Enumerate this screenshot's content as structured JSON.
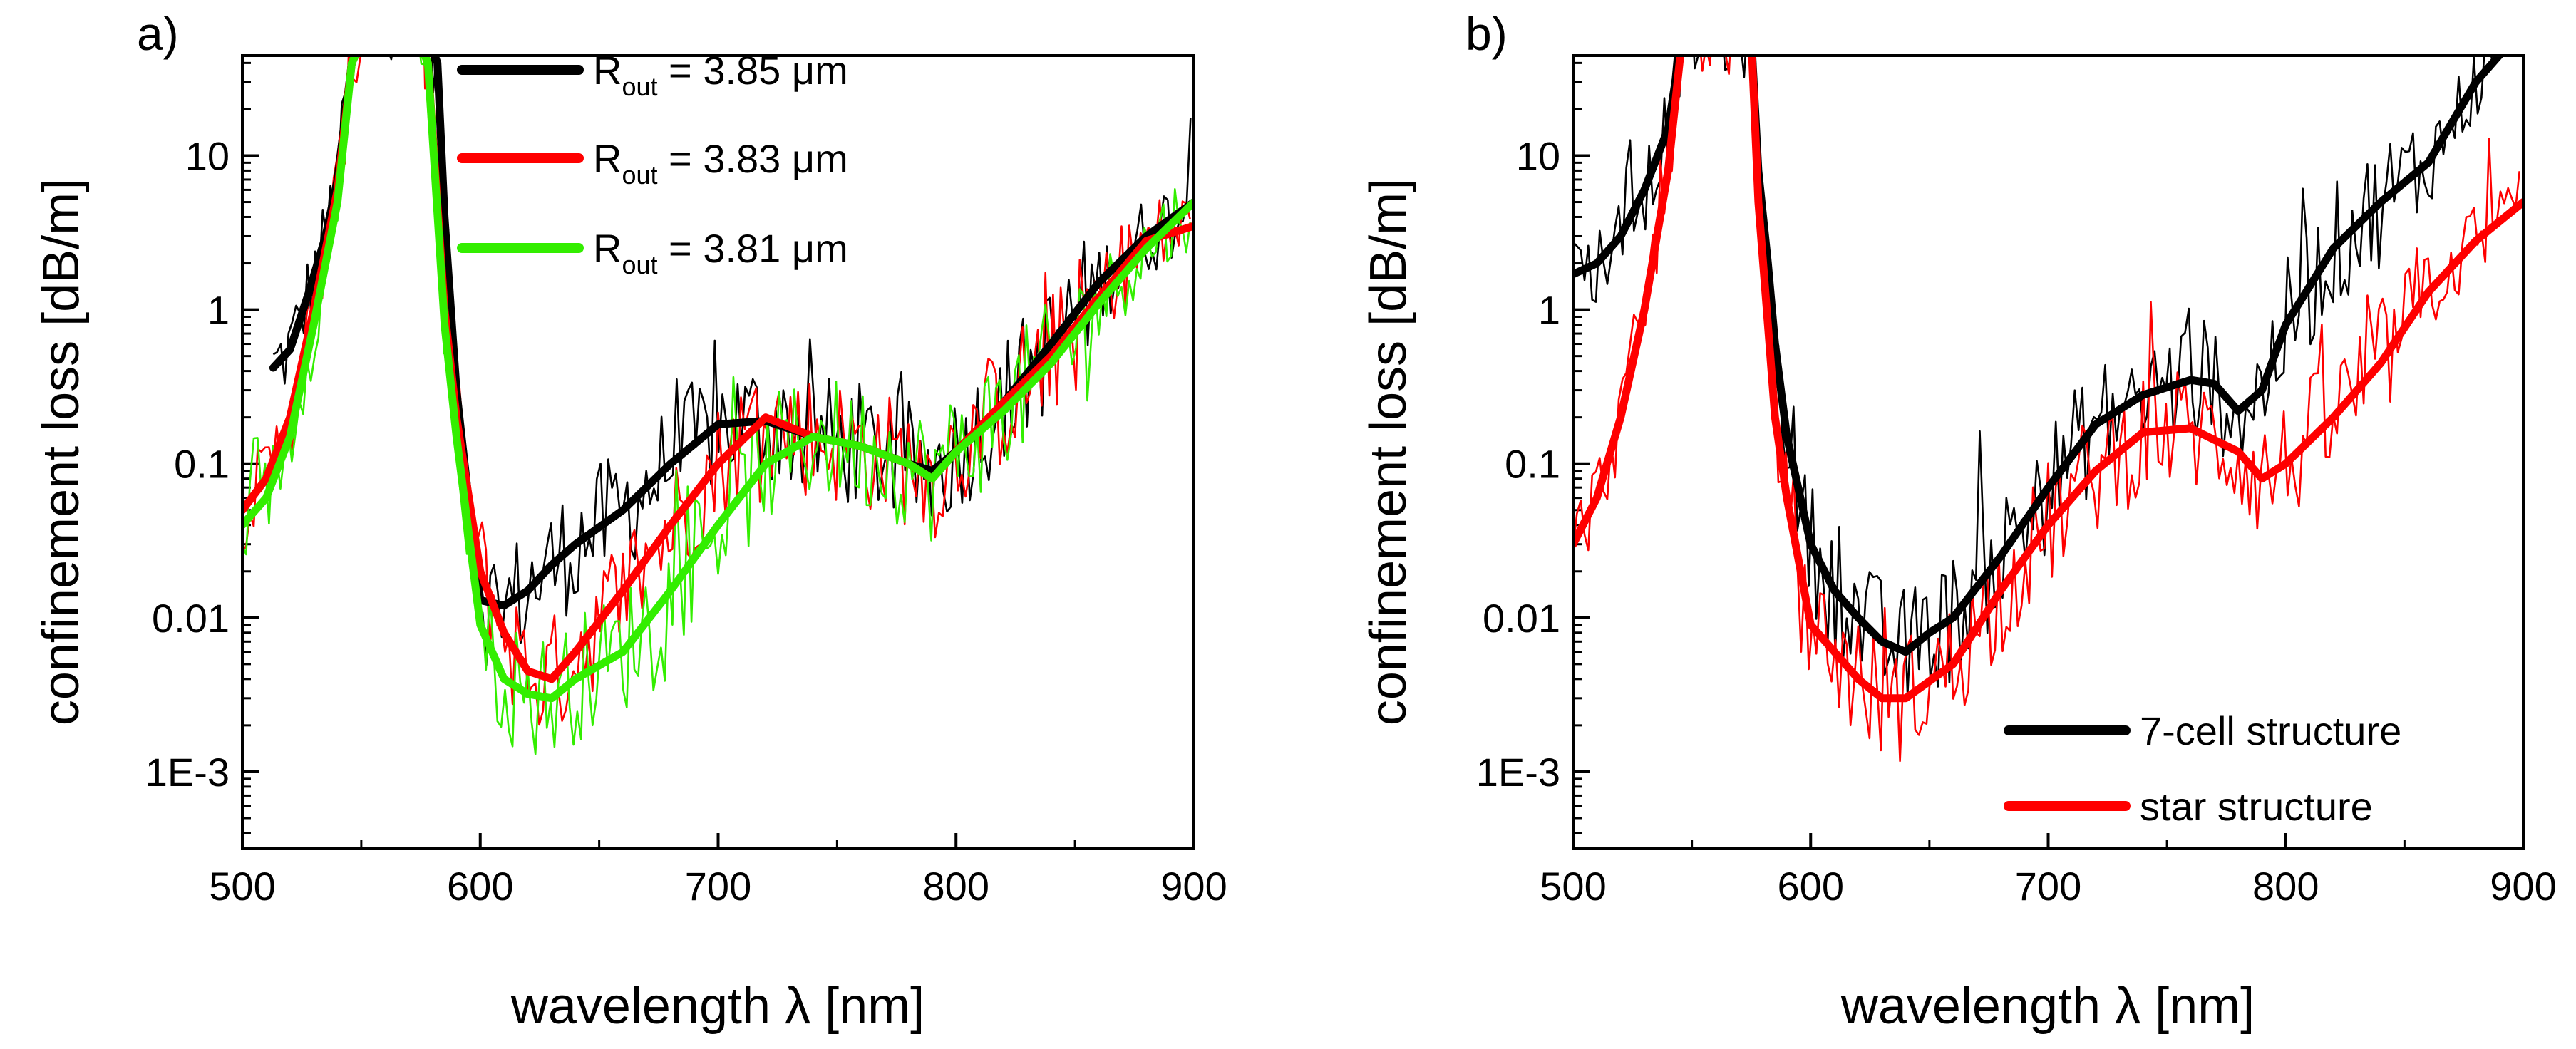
{
  "figure": {
    "description_free": true
  },
  "colors": {
    "black": "#000000",
    "red": "#ff0000",
    "green": "#33ee00"
  },
  "chart_data": [
    {
      "type": "line",
      "panel_label": "a)",
      "title": "",
      "xlabel": "wavelength λ [nm]",
      "ylabel": "confinement loss [dB/m]",
      "xlim": [
        500,
        900
      ],
      "ylim_log10": [
        -3.5,
        1.65
      ],
      "yscale": "log",
      "xticks": [
        500,
        600,
        700,
        800,
        900
      ],
      "xtick_labels": [
        "500",
        "600",
        "700",
        "800",
        "900"
      ],
      "yticks": [
        0.001,
        0.01,
        0.1,
        1,
        10
      ],
      "ytick_labels": [
        "1E-3",
        "0.01",
        "0.1",
        "1",
        "10"
      ],
      "legend": [
        {
          "prefix": "R",
          "sub": "out",
          "suffix": " = 3.85 μm",
          "color": "#000000"
        },
        {
          "prefix": "R",
          "sub": "out",
          "suffix": " = 3.83 μm",
          "color": "#ff0000"
        },
        {
          "prefix": "R",
          "sub": "out",
          "suffix": " = 3.81 μm",
          "color": "#33ee00"
        }
      ],
      "legend_position": "top-center",
      "series": [
        {
          "name": "R_out = 3.85 μm (smoothed)",
          "color": "#000000",
          "width": 11,
          "x": [
            513,
            520,
            528,
            535,
            540,
            546,
            555,
            565,
            575,
            582,
            585,
            590,
            595,
            600,
            610,
            620,
            630,
            640,
            660,
            680,
            700,
            720,
            740,
            760,
            780,
            790,
            800,
            820,
            840,
            860,
            880,
            900
          ],
          "y": [
            0.42,
            0.55,
            1.3,
            3,
            7,
            40,
            80,
            80,
            80,
            40,
            4,
            0.3,
            0.06,
            0.013,
            0.012,
            0.015,
            0.022,
            0.03,
            0.05,
            0.1,
            0.18,
            0.19,
            0.15,
            0.13,
            0.1,
            0.09,
            0.12,
            0.25,
            0.6,
            1.5,
            3,
            5
          ]
        },
        {
          "name": "R_out = 3.83 μm (smoothed)",
          "color": "#ff0000",
          "width": 11,
          "x": [
            500,
            510,
            520,
            530,
            540,
            546,
            555,
            570,
            578,
            585,
            590,
            600,
            610,
            620,
            630,
            640,
            660,
            680,
            700,
            720,
            740,
            760,
            780,
            790,
            800,
            820,
            840,
            860,
            880,
            900
          ],
          "y": [
            0.05,
            0.08,
            0.2,
            1,
            6,
            40,
            80,
            80,
            40,
            1,
            0.2,
            0.02,
            0.008,
            0.0045,
            0.004,
            0.006,
            0.015,
            0.04,
            0.1,
            0.2,
            0.15,
            0.13,
            0.1,
            0.08,
            0.12,
            0.25,
            0.5,
            1.2,
            2.8,
            3.5
          ]
        },
        {
          "name": "R_out = 3.81 μm (smoothed)",
          "color": "#33ee00",
          "width": 11,
          "x": [
            500,
            510,
            520,
            530,
            540,
            546,
            555,
            570,
            578,
            585,
            590,
            600,
            610,
            620,
            630,
            640,
            660,
            680,
            700,
            720,
            740,
            760,
            780,
            790,
            800,
            820,
            840,
            860,
            880,
            900
          ],
          "y": [
            0.04,
            0.06,
            0.15,
            0.8,
            5,
            40,
            80,
            80,
            40,
            0.8,
            0.15,
            0.009,
            0.004,
            0.0032,
            0.003,
            0.004,
            0.006,
            0.015,
            0.04,
            0.1,
            0.15,
            0.13,
            0.1,
            0.08,
            0.12,
            0.22,
            0.45,
            1.1,
            2.5,
            5
          ]
        }
      ]
    },
    {
      "type": "line",
      "panel_label": "b)",
      "title": "",
      "xlabel": "wavelength λ [nm]",
      "ylabel": "confinement loss [dB/m]",
      "xlim": [
        500,
        900
      ],
      "ylim_log10": [
        -3.5,
        1.65
      ],
      "yscale": "log",
      "xticks": [
        500,
        600,
        700,
        800,
        900
      ],
      "xtick_labels": [
        "500",
        "600",
        "700",
        "800",
        "900"
      ],
      "yticks": [
        0.001,
        0.01,
        0.1,
        1,
        10
      ],
      "ytick_labels": [
        "1E-3",
        "0.01",
        "0.1",
        "1",
        "10"
      ],
      "legend": [
        {
          "prefix": "7-cell structure",
          "sub": "",
          "suffix": "",
          "color": "#000000"
        },
        {
          "prefix": "star structure",
          "sub": "",
          "suffix": "",
          "color": "#ff0000"
        }
      ],
      "legend_position": "bottom-right",
      "series": [
        {
          "name": "7-cell structure (smoothed)",
          "color": "#000000",
          "width": 11,
          "x": [
            500,
            510,
            520,
            530,
            540,
            546,
            575,
            578,
            582,
            585,
            590,
            600,
            610,
            620,
            630,
            640,
            650,
            660,
            680,
            700,
            720,
            740,
            760,
            770,
            780,
            790,
            800,
            820,
            840,
            860,
            880,
            890
          ],
          "y": [
            1.7,
            2,
            3,
            6,
            15,
            60,
            60,
            8,
            2,
            0.6,
            0.15,
            0.03,
            0.015,
            0.01,
            0.007,
            0.006,
            0.008,
            0.01,
            0.025,
            0.07,
            0.18,
            0.28,
            0.35,
            0.33,
            0.22,
            0.3,
            0.8,
            2.5,
            5,
            9,
            30,
            45
          ]
        },
        {
          "name": "star structure (smoothed)",
          "color": "#ff0000",
          "width": 11,
          "x": [
            500,
            510,
            520,
            530,
            540,
            546,
            575,
            578,
            582,
            585,
            590,
            600,
            610,
            620,
            630,
            640,
            660,
            680,
            700,
            720,
            740,
            760,
            780,
            790,
            800,
            820,
            840,
            860,
            880,
            900
          ],
          "y": [
            0.03,
            0.06,
            0.2,
            1,
            8,
            60,
            60,
            5,
            0.8,
            0.2,
            0.06,
            0.009,
            0.006,
            0.004,
            0.003,
            0.003,
            0.005,
            0.015,
            0.04,
            0.09,
            0.16,
            0.17,
            0.12,
            0.08,
            0.1,
            0.2,
            0.45,
            1.3,
            2.8,
            5
          ]
        }
      ]
    }
  ]
}
